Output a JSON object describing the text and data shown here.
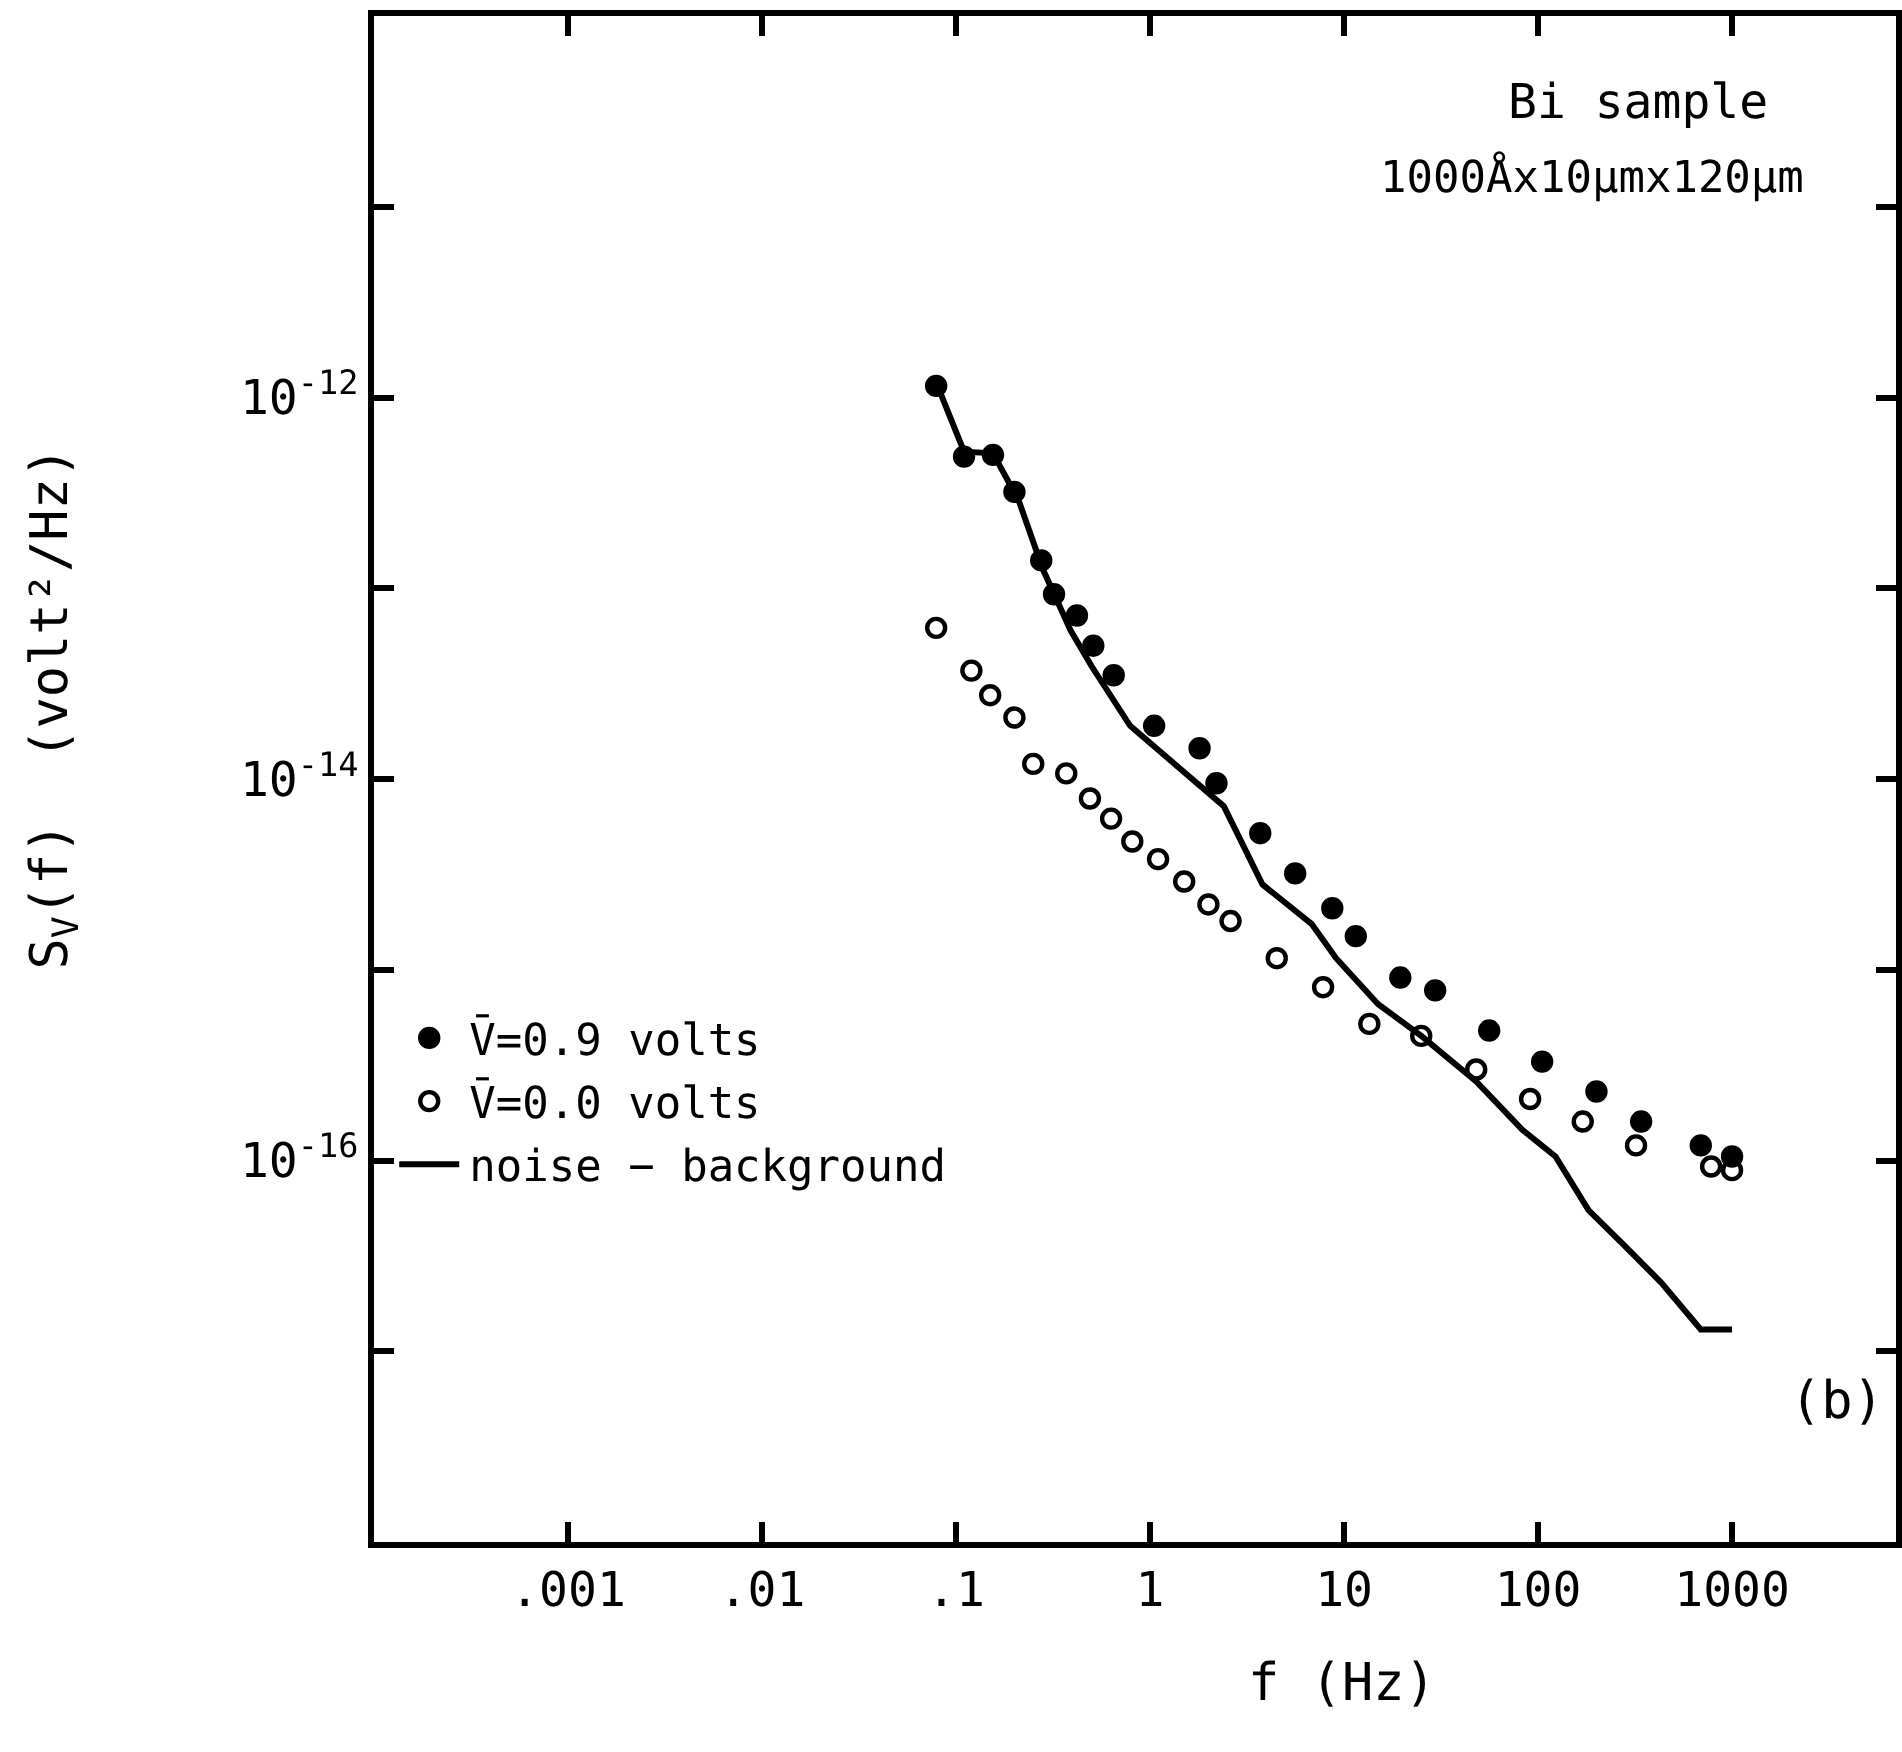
{
  "chart_data": {
    "type": "scatter",
    "xlabel": "f (Hz)",
    "ylabel": "S$_{V}$(f)  (volt²/Hz)",
    "annotations": [
      "Bi sample",
      "1000Åx10μmx120μm",
      "(b)"
    ],
    "log": "xy",
    "grid": false,
    "legend": "bottom left",
    "xlim": [
      0.0001,
      7000
    ],
    "xticks": [
      {
        "value": 0.001,
        "label": ".001"
      },
      {
        "value": 0.01,
        "label": ".01"
      },
      {
        "value": 0.1,
        "label": ".1"
      },
      1,
      10,
      100,
      1000
    ],
    "ylim": [
      1e-18,
      1e-10
    ],
    "yticks": [
      {
        "value": 1e-17,
        "label": null
      },
      {
        "value": 1e-16,
        "label": "10$^{-16}$"
      },
      {
        "value": 1e-15,
        "label": null
      },
      {
        "value": 1e-14,
        "label": "10$^{-14}$"
      },
      {
        "value": 1e-13,
        "label": null
      },
      {
        "value": 1e-12,
        "label": "10$^{-12}$"
      },
      {
        "value": 1e-11,
        "label": null
      }
    ],
    "series": [
      {
        "name": "V̄=0.9 volts",
        "marker": "circle",
        "color": "#000000",
        "x": [
          0.079,
          0.11,
          0.155,
          0.2,
          0.275,
          0.32,
          0.42,
          0.51,
          0.65,
          1.05,
          1.8,
          2.2,
          3.7,
          5.6,
          8.7,
          11.5,
          19.5,
          29.5,
          56,
          105,
          200,
          340,
          690,
          1000
        ],
        "values": [
          1.15e-12,
          4.9e-13,
          5e-13,
          3.2e-13,
          1.4e-13,
          9.3e-14,
          7.2e-14,
          5e-14,
          3.5e-14,
          1.9e-14,
          1.45e-14,
          9.5e-15,
          5.2e-15,
          3.2e-15,
          2.1e-15,
          1.5e-15,
          9.1e-16,
          7.8e-16,
          4.8e-16,
          3.3e-16,
          2.3e-16,
          1.6e-16,
          1.2e-16,
          1.05e-16
        ]
      },
      {
        "name": "V̄=0.0 volts",
        "marker": "circle-open",
        "color": "#000000",
        "x": [
          0.079,
          0.12,
          0.15,
          0.2,
          0.25,
          0.37,
          0.49,
          0.63,
          0.81,
          1.1,
          1.5,
          2.0,
          2.6,
          4.5,
          7.8,
          13.5,
          25,
          48,
          91,
          170,
          320,
          780,
          1000
        ],
        "values": [
          6.2e-14,
          3.7e-14,
          2.75e-14,
          2.1e-14,
          1.2e-14,
          1.07e-14,
          7.9e-15,
          6.2e-15,
          4.7e-15,
          3.8e-15,
          2.9e-15,
          2.2e-15,
          1.8e-15,
          1.15e-15,
          8.1e-16,
          5.2e-16,
          4.5e-16,
          3e-16,
          2.1e-16,
          1.6e-16,
          1.2e-16,
          9.3e-17,
          8.9e-17
        ]
      },
      {
        "name": "noise − background",
        "type": "line",
        "line_style": "solid",
        "color": "#000000",
        "x": [
          0.079,
          0.11,
          0.155,
          0.21,
          0.28,
          0.39,
          0.5,
          0.79,
          2.4,
          3.8,
          6.8,
          9.1,
          15,
          25,
          48,
          83,
          123,
          182,
          270,
          430,
          690,
          1000
        ],
        "values": [
          1.2e-12,
          5.2e-13,
          5.1e-13,
          2.9e-13,
          1.26e-13,
          6e-14,
          3.9e-14,
          1.9e-14,
          7.2e-15,
          2.8e-15,
          1.74e-15,
          1.15e-15,
          6.6e-16,
          4.5e-16,
          2.6e-16,
          1.45e-16,
          1.05e-16,
          5.5e-17,
          3.7e-17,
          2.3e-17,
          1.3e-17,
          1.3e-17
        ]
      }
    ]
  }
}
